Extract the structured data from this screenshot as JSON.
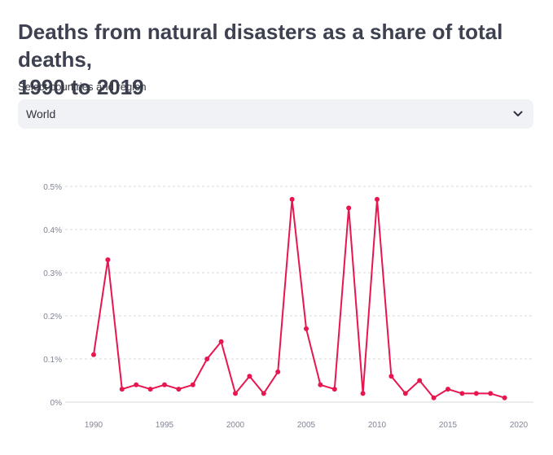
{
  "header": {
    "title_line1": "Deaths from natural disasters as a share of total deaths,",
    "title_line2": "1990 to 2019"
  },
  "selector": {
    "label": "Select countries and region",
    "value": "World",
    "icon": "chevron-down-icon"
  },
  "colors": {
    "line": "#e8164f",
    "grid": "#d9d9d9",
    "axis_text": "#808495"
  },
  "chart_data": {
    "type": "line",
    "title": "",
    "xlabel": "",
    "ylabel": "",
    "x": [
      1990,
      1991,
      1992,
      1993,
      1994,
      1995,
      1996,
      1997,
      1998,
      1999,
      2000,
      2001,
      2002,
      2003,
      2004,
      2005,
      2006,
      2007,
      2008,
      2009,
      2010,
      2011,
      2012,
      2013,
      2014,
      2015,
      2016,
      2017,
      2018,
      2019
    ],
    "series": [
      {
        "values": [
          0.11,
          0.33,
          0.03,
          0.04,
          0.03,
          0.04,
          0.03,
          0.04,
          0.1,
          0.14,
          0.02,
          0.06,
          0.02,
          0.07,
          0.47,
          0.17,
          0.04,
          0.03,
          0.45,
          0.02,
          0.47,
          0.06,
          0.02,
          0.05,
          0.01,
          0.03,
          0.02,
          0.02,
          0.02,
          0.01
        ]
      }
    ],
    "xlim": [
      1990,
      2020
    ],
    "ylim": [
      0,
      0.5
    ],
    "x_ticks": [
      "1990",
      "1995",
      "2000",
      "2005",
      "2010",
      "2015",
      "2020"
    ],
    "y_ticks": [
      "0%",
      "0.1%",
      "0.2%",
      "0.3%",
      "0.4%",
      "0.5%"
    ],
    "x_tick_values": [
      1990,
      1995,
      2000,
      2005,
      2010,
      2015,
      2020
    ],
    "y_tick_values": [
      0,
      0.1,
      0.2,
      0.3,
      0.4,
      0.5
    ],
    "grid": true,
    "markers": true
  }
}
